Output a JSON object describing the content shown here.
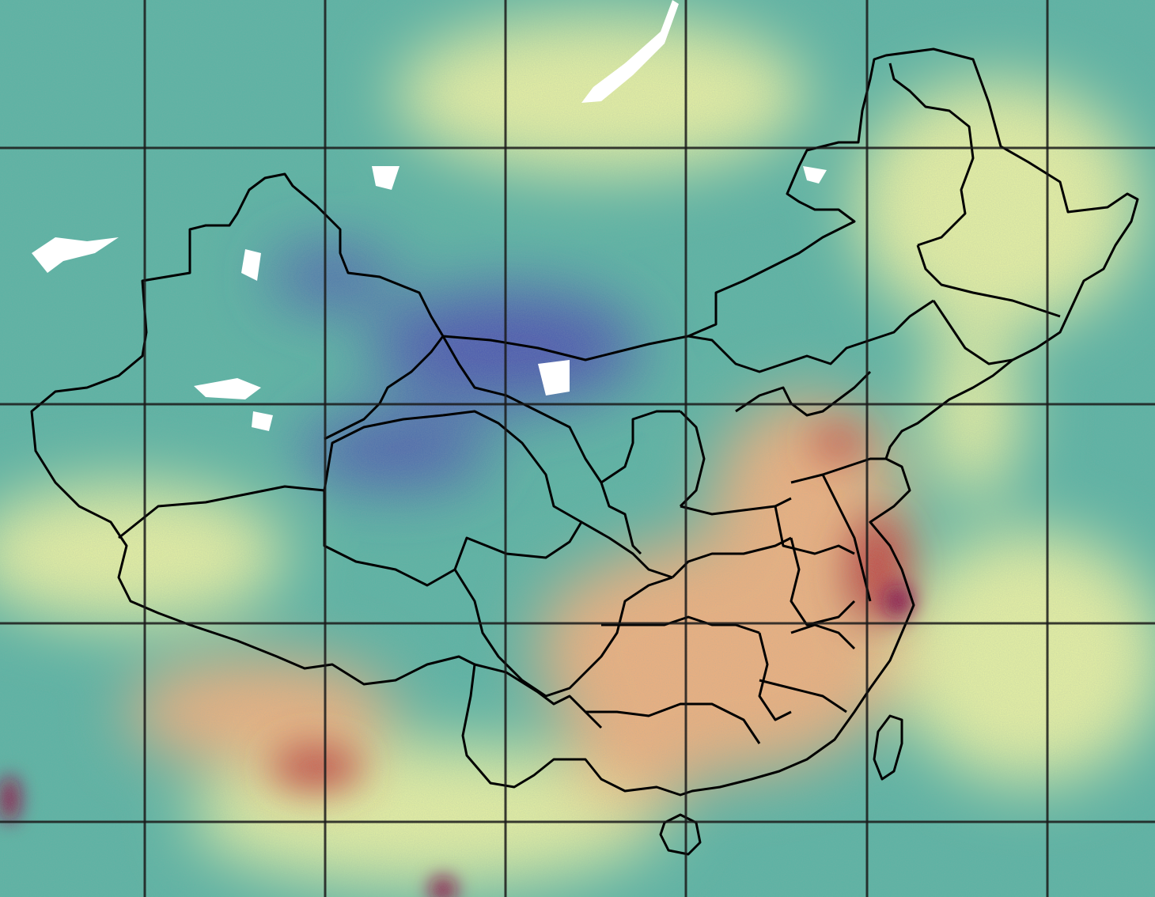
{
  "colors": {
    "field_low": "#4a52b0",
    "field_midlow": "#57b4a3",
    "field_mid": "#a9dca0",
    "field_midhigh": "#e9f3a2",
    "field_high": "#f2b07c",
    "field_peak": "#c8433b",
    "field_max": "#8d0a44",
    "snow": "#ffffff",
    "boundary": "#000000",
    "graticule": "#1a1a1a"
  },
  "layers": [
    "raster-field",
    "province-boundaries",
    "graticule-grid"
  ]
}
